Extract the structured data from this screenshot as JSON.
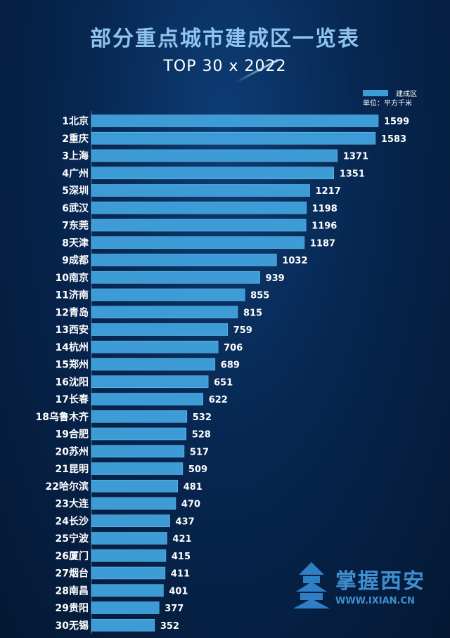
{
  "title": "部分重点城市建成区一览表",
  "subtitle": "TOP 30 x 2022",
  "legend": {
    "label": "建成区",
    "unit": "单位：平方千米"
  },
  "watermark": {
    "text": "掌握西安",
    "url": "WWW.IXIAN.CN"
  },
  "colors": {
    "bar": "#3d9bd6",
    "bar_edge": "#6cc0f0",
    "background": "#072650"
  },
  "chart_data": {
    "type": "bar",
    "orientation": "horizontal",
    "title": "部分重点城市建成区一览表",
    "series_name": "建成区",
    "unit": "平方千米",
    "xlim": [
      0,
      1599
    ],
    "categories": [
      "1北京",
      "2重庆",
      "3上海",
      "4广州",
      "5深圳",
      "6武汉",
      "7东莞",
      "8天津",
      "9成都",
      "10南京",
      "11济南",
      "12青岛",
      "13西安",
      "14杭州",
      "15郑州",
      "16沈阳",
      "17长春",
      "18乌鲁木齐",
      "19合肥",
      "20苏州",
      "21昆明",
      "22哈尔滨",
      "23大连",
      "24长沙",
      "25宁波",
      "26厦门",
      "27烟台",
      "28南昌",
      "29贵阳",
      "30无锡"
    ],
    "values": [
      1599,
      1583,
      1371,
      1351,
      1217,
      1198,
      1196,
      1187,
      1032,
      939,
      855,
      815,
      759,
      706,
      689,
      651,
      622,
      532,
      528,
      517,
      509,
      481,
      470,
      437,
      421,
      415,
      411,
      401,
      377,
      352
    ]
  }
}
